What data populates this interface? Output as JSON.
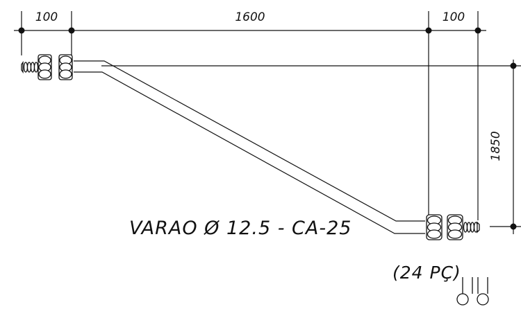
{
  "dimensions": {
    "left_end": "100",
    "middle_span": "1600",
    "right_end": "100",
    "height": "1850"
  },
  "bar_label": "VARAO Ø 12.5 - CA-25",
  "quantity_label": "(24 PÇ)",
  "colors": {
    "line": "#111111",
    "background": "#ffffff"
  }
}
